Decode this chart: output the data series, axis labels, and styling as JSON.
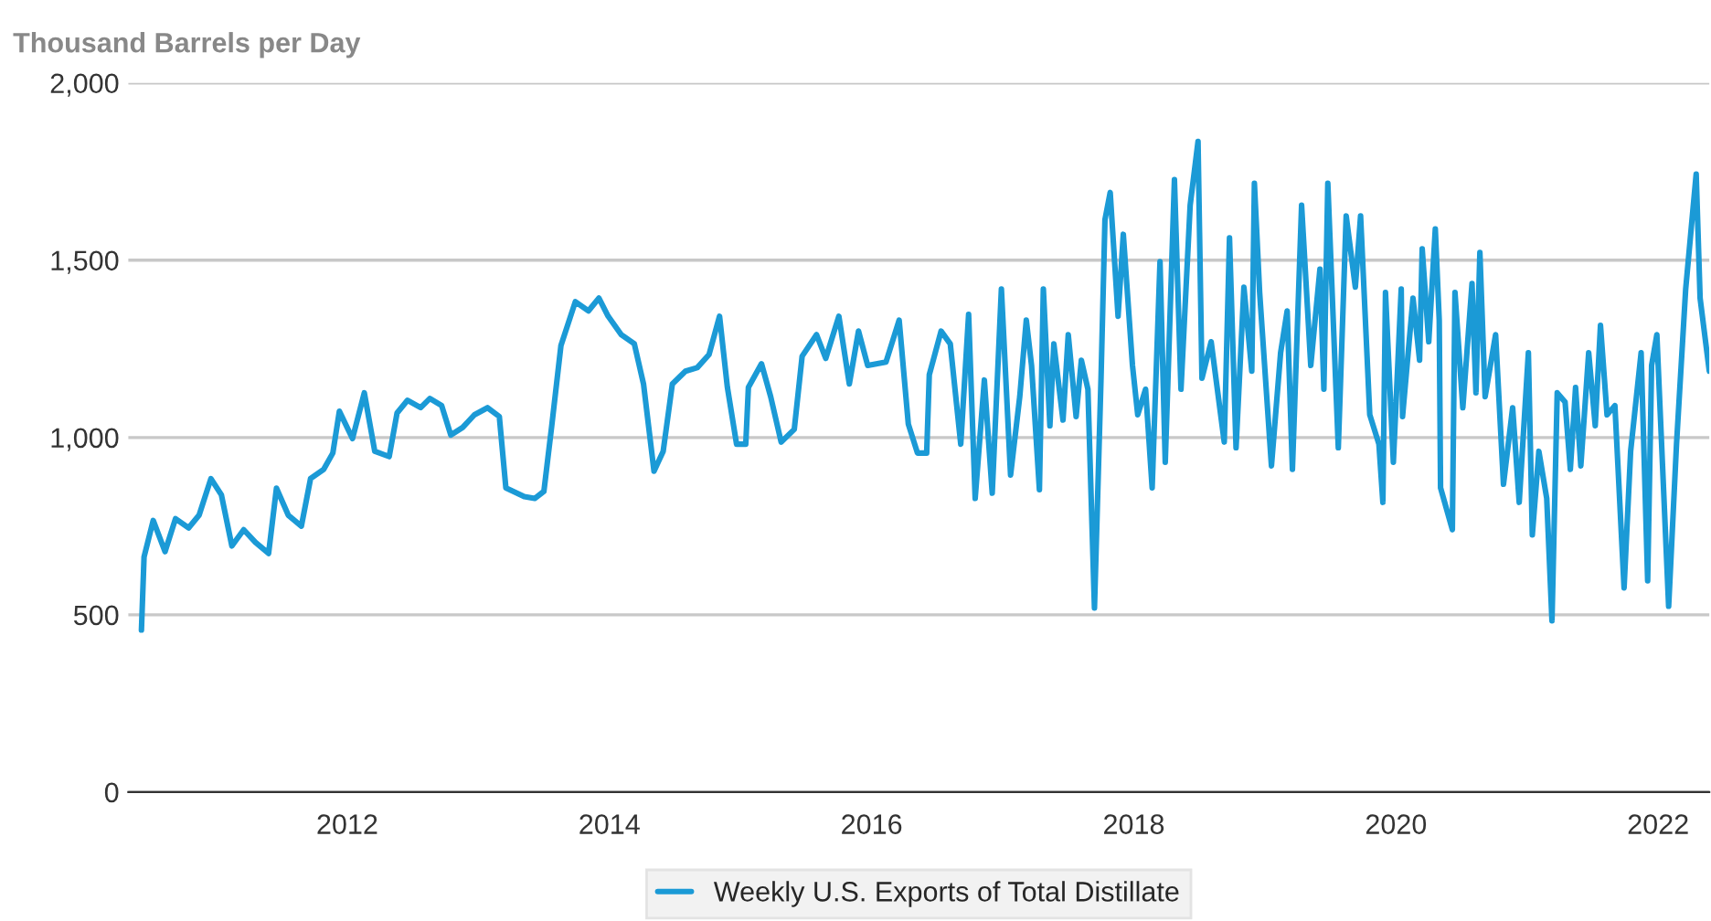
{
  "chart_data": {
    "type": "line",
    "ylabel": "Thousand Barrels per Day",
    "xlim": [
      2010.33,
      2022.39
    ],
    "xticks": [
      2012,
      2014,
      2016,
      2018,
      2020,
      2022
    ],
    "ylim": [
      0,
      2000
    ],
    "yticks": [
      0,
      500,
      {
        "value": 1000,
        "label": "1,000"
      },
      {
        "value": 1500,
        "label": "1,500"
      },
      {
        "value": 2000,
        "label": "2,000"
      }
    ],
    "grid": "y",
    "legend": "bottom",
    "marker": "none",
    "line_style": "solid",
    "series": [
      {
        "name": "Weekly U.S. Exports of Total Distillate",
        "color": "#1b9ad6",
        "x": [
          2010.43,
          2010.45,
          2010.52,
          2010.61,
          2010.69,
          2010.79,
          2010.87,
          2010.96,
          2011.04,
          2011.12,
          2011.21,
          2011.3,
          2011.4,
          2011.46,
          2011.55,
          2011.65,
          2011.72,
          2011.82,
          2011.89,
          2011.94,
          2012.04,
          2012.13,
          2012.21,
          2012.32,
          2012.38,
          2012.46,
          2012.56,
          2012.63,
          2012.72,
          2012.79,
          2012.88,
          2012.97,
          2013.07,
          2013.16,
          2013.21,
          2013.35,
          2013.43,
          2013.5,
          2013.56,
          2013.63,
          2013.74,
          2013.84,
          2013.92,
          2013.99,
          2014.09,
          2014.19,
          2014.26,
          2014.34,
          2014.41,
          2014.48,
          2014.58,
          2014.67,
          2014.76,
          2014.84,
          2014.9,
          2014.97,
          2015.04,
          2015.06,
          2015.16,
          2015.23,
          2015.31,
          2015.41,
          2015.47,
          2015.58,
          2015.65,
          2015.75,
          2015.83,
          2015.9,
          2015.97,
          2016.11,
          2016.21,
          2016.28,
          2016.35,
          2016.42,
          2016.44,
          2016.53,
          2016.6,
          2016.68,
          2016.74,
          2016.79,
          2016.86,
          2016.92,
          2016.99,
          2017.06,
          2017.13,
          2017.18,
          2017.22,
          2017.28,
          2017.31,
          2017.36,
          2017.39,
          2017.46,
          2017.5,
          2017.56,
          2017.6,
          2017.65,
          2017.7,
          2017.75,
          2017.78,
          2017.82,
          2017.88,
          2017.92,
          2017.99,
          2018.03,
          2018.09,
          2018.14,
          2018.2,
          2018.24,
          2018.31,
          2018.36,
          2018.43,
          2018.49,
          2018.52,
          2018.59,
          2018.69,
          2018.73,
          2018.78,
          2018.84,
          2018.9,
          2018.92,
          2018.96,
          2019.05,
          2019.12,
          2019.17,
          2019.21,
          2019.28,
          2019.35,
          2019.42,
          2019.45,
          2019.48,
          2019.56,
          2019.62,
          2019.69,
          2019.73,
          2019.8,
          2019.87,
          2019.9,
          2019.92,
          2019.98,
          2020.04,
          2020.05,
          2020.13,
          2020.18,
          2020.2,
          2020.25,
          2020.3,
          2020.33,
          2020.34,
          2020.43,
          2020.45,
          2020.51,
          2020.58,
          2020.61,
          2020.64,
          2020.68,
          2020.76,
          2020.82,
          2020.89,
          2020.94,
          2021.01,
          2021.04,
          2021.09,
          2021.15,
          2021.19,
          2021.23,
          2021.29,
          2021.33,
          2021.37,
          2021.41,
          2021.47,
          2021.52,
          2021.56,
          2021.61,
          2021.67,
          2021.74,
          2021.79,
          2021.87,
          2021.92,
          2021.95,
          2021.99,
          2022.08,
          2022.14,
          2022.21,
          2022.29,
          2022.32,
          2022.39
        ],
        "values": [
          457,
          663,
          766,
          678,
          771,
          745,
          781,
          884,
          838,
          694,
          740,
          704,
          673,
          857,
          781,
          750,
          884,
          910,
          956,
          1074,
          997,
          1126,
          961,
          946,
          1069,
          1105,
          1084,
          1110,
          1090,
          1007,
          1028,
          1064,
          1084,
          1059,
          858,
          833,
          828,
          848,
          1033,
          1259,
          1383,
          1357,
          1393,
          1342,
          1290,
          1264,
          1151,
          905,
          961,
          1151,
          1187,
          1197,
          1234,
          1342,
          1141,
          981,
          981,
          1141,
          1208,
          1115,
          987,
          1023,
          1229,
          1290,
          1223,
          1342,
          1151,
          1300,
          1203,
          1213,
          1331,
          1038,
          956,
          956,
          1177,
          1300,
          1264,
          981,
          1347,
          828,
          1162,
          843,
          1419,
          894,
          1115,
          1331,
          1203,
          853,
          1419,
          1033,
          1264,
          1049,
          1290,
          1059,
          1218,
          1136,
          519,
          1167,
          1614,
          1691,
          1342,
          1573,
          1203,
          1064,
          1136,
          858,
          1496,
          930,
          1727,
          1136,
          1655,
          1835,
          1167,
          1270,
          987,
          1563,
          971,
          1424,
          1187,
          1717,
          1409,
          920,
          1239,
          1357,
          910,
          1655,
          1203,
          1475,
          1136,
          1717,
          971,
          1625,
          1424,
          1625,
          1064,
          981,
          817,
          1409,
          930,
          1419,
          1059,
          1393,
          1218,
          1532,
          1270,
          1588,
          1331,
          858,
          740,
          1409,
          1084,
          1434,
          1126,
          1522,
          1115,
          1290,
          868,
          1084,
          817,
          1239,
          725,
          961,
          828,
          483,
          1126,
          1100,
          910,
          1141,
          920,
          1239,
          1033,
          1316,
          1064,
          1090,
          576,
          961,
          1239,
          596,
          1203,
          1290,
          524,
          981,
          1419,
          1743,
          1393,
          1187
        ]
      }
    ]
  }
}
